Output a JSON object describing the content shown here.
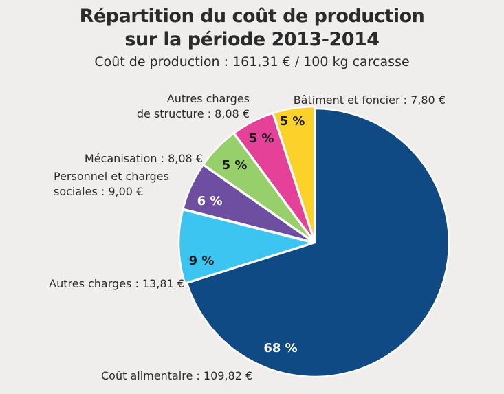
{
  "chart_data": {
    "type": "pie",
    "title_lines": [
      "Répartition du coût de production",
      "sur la période 2013-2014"
    ],
    "subtitle": "Coût de production : 161,31 € / 100 kg carcasse",
    "slices": [
      {
        "label_lines": [
          "Coût alimentaire : 109,82 €"
        ],
        "value": 109.82,
        "percent_label": "68 %",
        "color": "#0f4a84",
        "pct_color": "#ffffff",
        "exploded": false
      },
      {
        "label_lines": [
          "Autres charges : 13,81 €"
        ],
        "value": 13.81,
        "percent_label": "9 %",
        "color": "#3cc5f0",
        "pct_color": "#1a1a1a",
        "exploded": true
      },
      {
        "label_lines": [
          "Personnel et charges",
          "sociales : 9,00 €"
        ],
        "value": 9.0,
        "percent_label": "6 %",
        "color": "#6e4ea1",
        "pct_color": "#ffffff",
        "exploded": true
      },
      {
        "label_lines": [
          "Mécanisation : 8,08 €"
        ],
        "value": 8.08,
        "percent_label": "5 %",
        "color": "#97cf6b",
        "pct_color": "#1a1a1a",
        "exploded": true
      },
      {
        "label_lines": [
          "Autres charges",
          "de structure : 8,08 €"
        ],
        "value": 8.08,
        "percent_label": "5 %",
        "color": "#e64199",
        "pct_color": "#1a1a1a",
        "exploded": true
      },
      {
        "label_lines": [
          "Bâtiment et foncier : 7,80 €"
        ],
        "value": 7.8,
        "percent_label": "5 %",
        "color": "#fcd12a",
        "pct_color": "#1a1a1a",
        "exploded": true
      }
    ]
  }
}
